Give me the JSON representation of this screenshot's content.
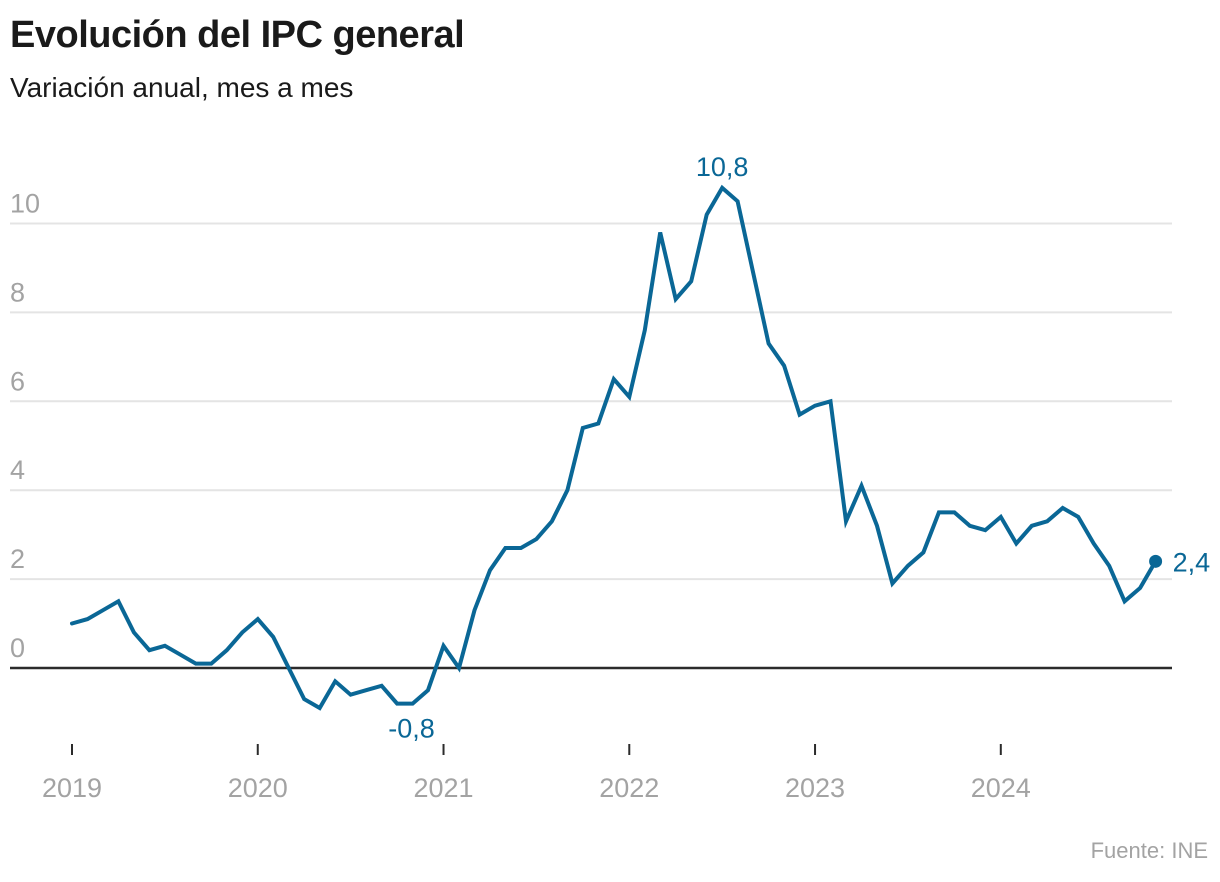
{
  "header": {
    "title": "Evolución del IPC general",
    "subtitle": "Variación anual, mes a mes"
  },
  "footer": {
    "source": "Fuente: INE"
  },
  "colors": {
    "series": "#0a6796",
    "grid": "#e4e4e4",
    "zero_line": "#2b2b2b",
    "axis_text": "#a3a3a3"
  },
  "chart_data": {
    "type": "line",
    "title": "Evolución del IPC general",
    "subtitle": "Variación anual, mes a mes",
    "xlabel": "",
    "ylabel": "",
    "ylim": [
      -1.5,
      11
    ],
    "yticks": [
      0,
      2,
      4,
      6,
      8,
      10
    ],
    "ytick_labels": [
      "0",
      "2",
      "4",
      "6",
      "8",
      "10"
    ],
    "xlim": [
      2019.0,
      2024.9
    ],
    "xticks": [
      2019,
      2020,
      2021,
      2022,
      2023,
      2024
    ],
    "xtick_labels": [
      "2019",
      "2020",
      "2021",
      "2022",
      "2023",
      "2024"
    ],
    "grid": true,
    "legend": "none",
    "series": [
      {
        "name": "IPC general (variación anual)",
        "start": "2019-01",
        "frequency": "monthly",
        "values": [
          1.0,
          1.1,
          1.3,
          1.5,
          0.8,
          0.4,
          0.5,
          0.3,
          0.1,
          0.1,
          0.4,
          0.8,
          1.1,
          0.7,
          0.0,
          -0.7,
          -0.9,
          -0.3,
          -0.6,
          -0.5,
          -0.4,
          -0.8,
          -0.8,
          -0.5,
          0.5,
          0.0,
          1.3,
          2.2,
          2.7,
          2.7,
          2.9,
          3.3,
          4.0,
          5.4,
          5.5,
          6.5,
          6.1,
          7.6,
          9.8,
          8.3,
          8.7,
          10.2,
          10.8,
          10.5,
          8.9,
          7.3,
          6.8,
          5.7,
          5.9,
          6.0,
          3.3,
          4.1,
          3.2,
          1.9,
          2.3,
          2.6,
          3.5,
          3.5,
          3.2,
          3.1,
          3.4,
          2.8,
          3.2,
          3.3,
          3.6,
          3.4,
          2.8,
          2.3,
          1.5,
          1.8,
          2.4
        ]
      }
    ],
    "annotations": [
      {
        "label": "10,8",
        "index": 42,
        "value": 10.8,
        "position": "above"
      },
      {
        "label": "-0,8",
        "index": 22,
        "value": -0.8,
        "position": "below"
      },
      {
        "label": "2,4",
        "index": 70,
        "value": 2.4,
        "position": "right",
        "marker": "dot"
      }
    ]
  }
}
